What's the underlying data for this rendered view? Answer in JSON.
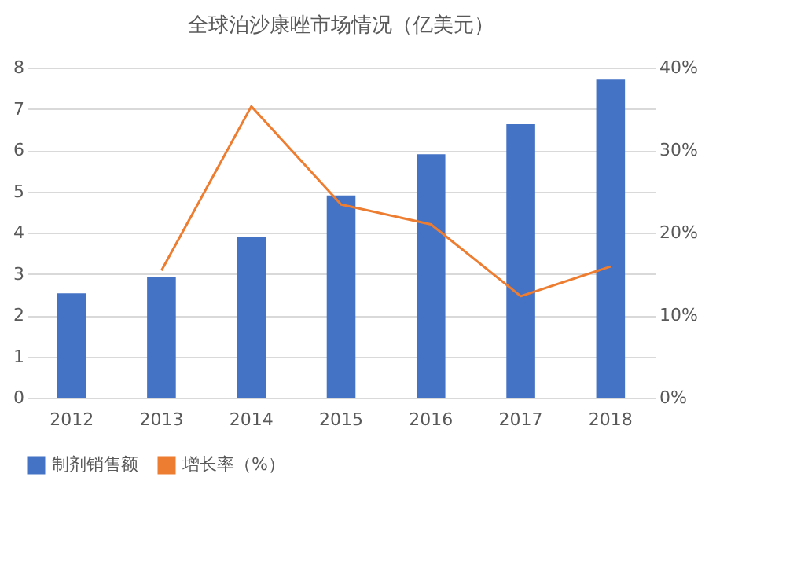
{
  "chart_data": {
    "type": "bar",
    "title": "全球泊沙康唑市场情况（亿美元）",
    "categories": [
      "2012",
      "2013",
      "2014",
      "2015",
      "2016",
      "2017",
      "2018"
    ],
    "series": [
      {
        "name": "制剂销售额",
        "color": "#4472c4",
        "values": [
          2.53,
          2.92,
          3.9,
          4.9,
          5.9,
          6.63,
          7.71
        ]
      },
      {
        "name": "增长率（%）",
        "type": "line",
        "axis": "y2",
        "color": "#ed7d31",
        "values": [
          null,
          15.4,
          35.3,
          23.4,
          21,
          12.3,
          15.9
        ]
      }
    ],
    "ylim": [
      0,
      8
    ],
    "yticks": [
      0,
      1,
      2,
      3,
      4,
      5,
      6,
      7,
      8
    ],
    "y2lim": [
      0,
      40
    ],
    "y2ticks": [
      {
        "value": 0,
        "label": "0%"
      },
      {
        "value": 10,
        "label": "10%"
      },
      {
        "value": 20,
        "label": "20%"
      },
      {
        "value": 30,
        "label": "30%"
      },
      {
        "value": 40,
        "label": "40%"
      }
    ],
    "grid": "y",
    "legend": "bottom",
    "marker": "none",
    "line_style": "solid"
  }
}
